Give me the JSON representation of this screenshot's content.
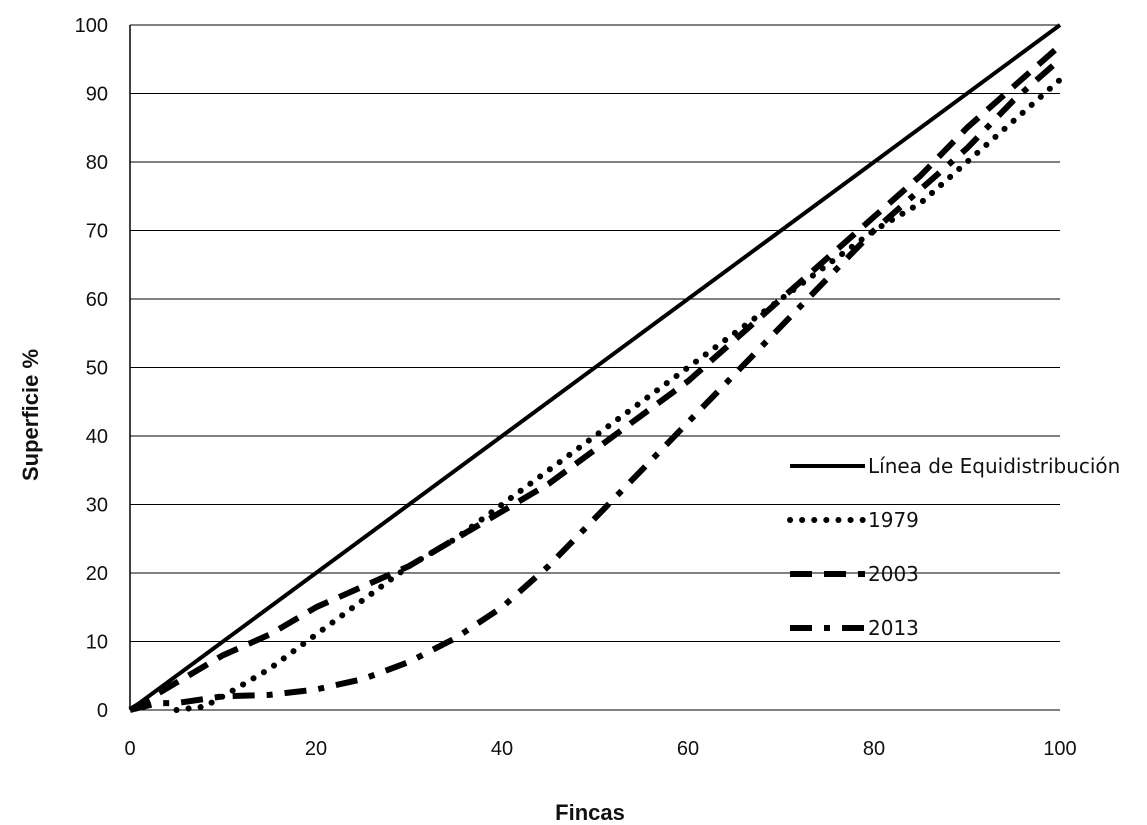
{
  "chart_data": {
    "type": "line",
    "title": "",
    "xlabel": "Fincas",
    "ylabel": "Superficie %",
    "xlim": [
      0,
      100
    ],
    "ylim": [
      0,
      100
    ],
    "x_ticks": [
      0,
      20,
      40,
      60,
      80,
      100
    ],
    "y_ticks": [
      0,
      10,
      20,
      30,
      40,
      50,
      60,
      70,
      80,
      90,
      100
    ],
    "grid": "horizontal",
    "legend_position": "right",
    "series": [
      {
        "name": "Línea de Equidistribución",
        "style": "solid",
        "color": "#000000",
        "points": [
          [
            0,
            0
          ],
          [
            100,
            100
          ]
        ]
      },
      {
        "name": "1979",
        "style": "dotted",
        "color": "#000000",
        "points": [
          [
            5,
            0
          ],
          [
            8,
            0.5
          ],
          [
            10,
            2
          ],
          [
            15,
            6
          ],
          [
            20,
            11
          ],
          [
            25,
            16
          ],
          [
            30,
            21
          ],
          [
            35,
            25
          ],
          [
            40,
            30
          ],
          [
            45,
            35
          ],
          [
            50,
            40
          ],
          [
            55,
            45
          ],
          [
            60,
            50
          ],
          [
            65,
            55
          ],
          [
            70,
            60
          ],
          [
            75,
            65
          ],
          [
            80,
            70
          ],
          [
            85,
            74
          ],
          [
            90,
            80
          ],
          [
            95,
            86
          ],
          [
            100,
            92
          ]
        ]
      },
      {
        "name": "2003",
        "style": "dashed",
        "color": "#000000",
        "points": [
          [
            0,
            0
          ],
          [
            5,
            4
          ],
          [
            10,
            8
          ],
          [
            15,
            11
          ],
          [
            20,
            15
          ],
          [
            25,
            18
          ],
          [
            30,
            21
          ],
          [
            35,
            25
          ],
          [
            40,
            29
          ],
          [
            45,
            33
          ],
          [
            50,
            38
          ],
          [
            55,
            43
          ],
          [
            60,
            48
          ],
          [
            65,
            54
          ],
          [
            70,
            60
          ],
          [
            75,
            66
          ],
          [
            80,
            72
          ],
          [
            85,
            78
          ],
          [
            90,
            85
          ],
          [
            95,
            91
          ],
          [
            100,
            97
          ]
        ]
      },
      {
        "name": "2013",
        "style": "dash-dot",
        "color": "#000000",
        "points": [
          [
            0,
            0
          ],
          [
            3,
            1
          ],
          [
            5,
            1
          ],
          [
            10,
            2
          ],
          [
            15,
            2.2
          ],
          [
            20,
            3
          ],
          [
            25,
            4.5
          ],
          [
            30,
            7
          ],
          [
            35,
            10.5
          ],
          [
            40,
            15
          ],
          [
            45,
            21
          ],
          [
            50,
            28
          ],
          [
            55,
            35
          ],
          [
            60,
            42
          ],
          [
            65,
            49
          ],
          [
            70,
            56
          ],
          [
            75,
            63
          ],
          [
            80,
            70
          ],
          [
            85,
            76
          ],
          [
            90,
            82
          ],
          [
            95,
            89
          ],
          [
            100,
            95
          ]
        ]
      }
    ]
  }
}
